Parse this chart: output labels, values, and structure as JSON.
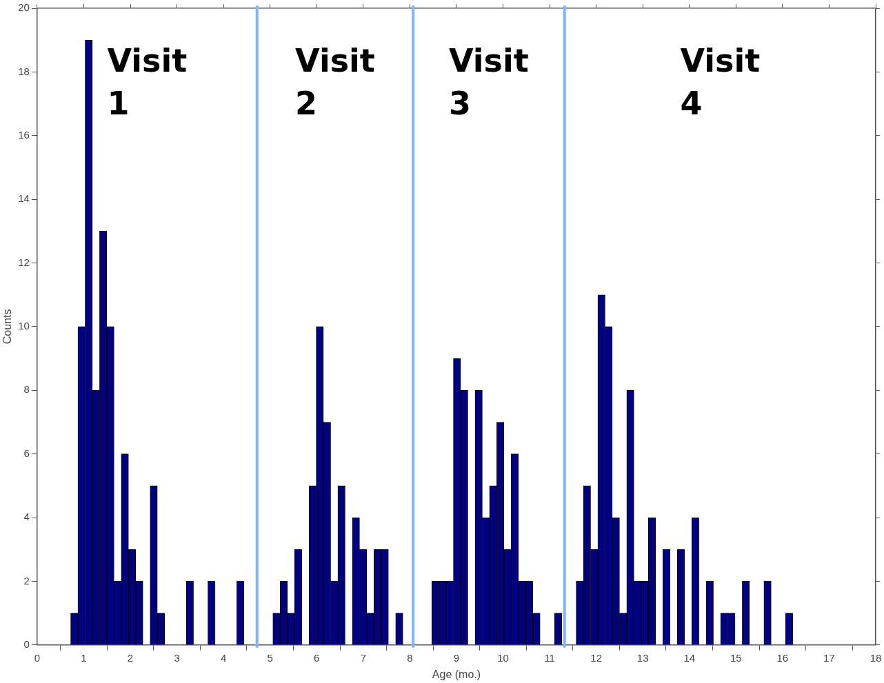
{
  "chart_data": {
    "type": "histogram",
    "xlabel": "Age (mo.)",
    "ylabel": "Counts",
    "bins": [
      0.72,
      0.875,
      1.03,
      1.185,
      1.34,
      1.495,
      1.65,
      1.805,
      1.96,
      2.115,
      2.27,
      2.425,
      2.58,
      2.735,
      2.89,
      3.045,
      3.2,
      3.355,
      3.51,
      3.665,
      3.82,
      3.975,
      4.13,
      4.285,
      4.44,
      4.595,
      4.75,
      4.905,
      5.06,
      5.215,
      5.37,
      5.525,
      5.68,
      5.835,
      5.99,
      6.145,
      6.3,
      6.455,
      6.61,
      6.765,
      6.92,
      7.075,
      7.23,
      7.385,
      7.54,
      7.695,
      7.85,
      8.005,
      8.16,
      8.315,
      8.47,
      8.625,
      8.78,
      8.935,
      9.09,
      9.245,
      9.4,
      9.555,
      9.71,
      9.865,
      10.02,
      10.175,
      10.33,
      10.485,
      10.64,
      10.795,
      10.95,
      11.105,
      11.26,
      11.415,
      11.57,
      11.725,
      11.88,
      12.035,
      12.19,
      12.345,
      12.5,
      12.655,
      12.81,
      12.965,
      13.12,
      13.275,
      13.43,
      13.585,
      13.74,
      13.895,
      14.05,
      14.205,
      14.36,
      14.515,
      14.67,
      14.825,
      14.98,
      15.135,
      15.29,
      15.445,
      15.6,
      15.755,
      15.91,
      16.065,
      16.22
    ],
    "values": [
      1,
      10,
      19,
      8,
      13,
      10,
      2,
      6,
      3,
      2,
      0,
      5,
      1,
      0,
      0,
      0,
      2,
      0,
      0,
      2,
      0,
      0,
      0,
      2,
      0,
      0,
      0,
      0,
      1,
      2,
      1,
      3,
      0,
      5,
      10,
      7,
      2,
      5,
      0,
      4,
      3,
      1,
      3,
      3,
      0,
      1,
      0,
      0,
      0,
      0,
      2,
      2,
      2,
      9,
      8,
      0,
      8,
      4,
      5,
      7,
      3,
      6,
      2,
      2,
      1,
      0,
      0,
      1,
      0,
      0,
      2,
      5,
      3,
      11,
      10,
      4,
      1,
      8,
      2,
      2,
      4,
      0,
      3,
      0,
      3,
      0,
      4,
      0,
      2,
      0,
      1,
      1,
      0,
      2,
      0,
      0,
      2,
      0,
      0,
      1
    ],
    "color": "#000080",
    "xlim": [
      0,
      18
    ],
    "xticks": [
      0,
      1,
      2,
      3,
      4,
      5,
      6,
      7,
      8,
      9,
      10,
      11,
      12,
      13,
      14,
      15,
      16,
      17,
      18
    ],
    "ylim": [
      0,
      20
    ],
    "yticks": [
      0,
      2,
      4,
      6,
      8,
      10,
      12,
      14,
      16,
      18,
      20
    ],
    "ref_lines": [
      {
        "axis": "x",
        "value": 4.72,
        "color": "#7fb5ff"
      },
      {
        "axis": "x",
        "value": 8.07,
        "color": "#7fb5ff"
      },
      {
        "axis": "x",
        "value": 11.32,
        "color": "#7fb5ff"
      }
    ],
    "annotations": [
      "Visit 1",
      "Visit 2",
      "Visit 3",
      "Visit 4"
    ],
    "grid": false,
    "legend": false
  }
}
